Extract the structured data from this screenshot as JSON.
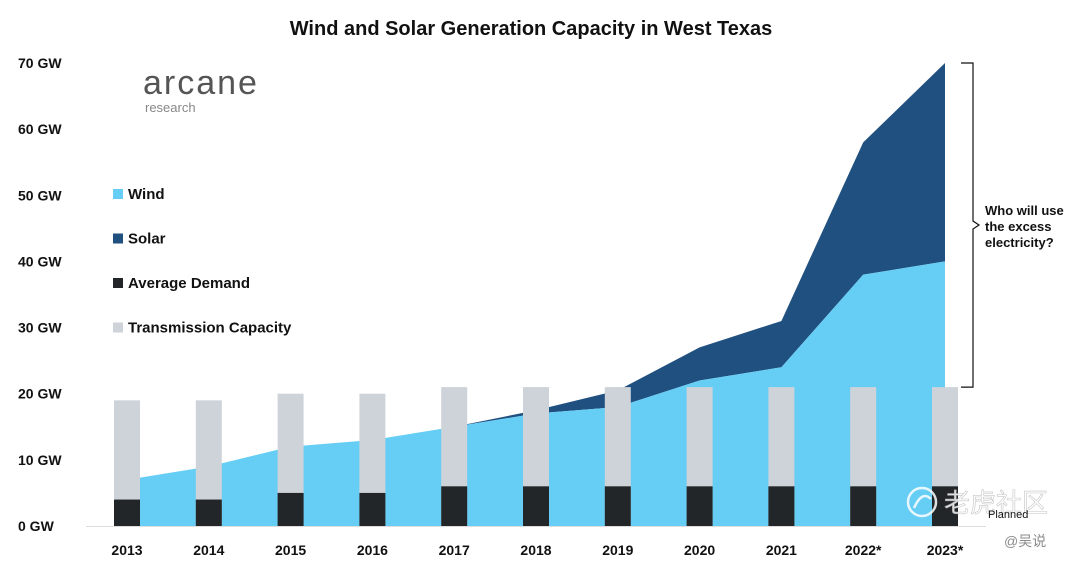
{
  "chart_data": {
    "type": "area",
    "title": "Wind and Solar Generation Capacity in West Texas",
    "categories": [
      "2013",
      "2014",
      "2015",
      "2016",
      "2017",
      "2018",
      "2019",
      "2020",
      "2021",
      "2022*",
      "2023*"
    ],
    "y_ticks": [
      "0 GW",
      "10 GW",
      "20 GW",
      "30 GW",
      "40 GW",
      "50 GW",
      "60 GW",
      "70 GW"
    ],
    "ylim": [
      0,
      70
    ],
    "unit": "GW",
    "grid": false,
    "legend_placement": "left",
    "series": [
      {
        "name": "Wind",
        "kind": "area",
        "color": "#66cdf5",
        "values": [
          7,
          9,
          12,
          13,
          15,
          17,
          18,
          22,
          24,
          38,
          40
        ]
      },
      {
        "name": "Solar",
        "kind": "area-stacked",
        "color": "#1f5080",
        "values": [
          0,
          0,
          0,
          0,
          0,
          0.5,
          2.5,
          5,
          7,
          20,
          30
        ]
      },
      {
        "name": "Average Demand",
        "kind": "bar",
        "color": "#222629",
        "values": [
          4,
          4,
          5,
          5,
          6,
          6,
          6,
          6,
          6,
          6,
          6
        ]
      },
      {
        "name": "Transmission Capacity",
        "kind": "bar",
        "color": "#ced3d9",
        "values": [
          19,
          19,
          20,
          20,
          21,
          21,
          21,
          21,
          21,
          21,
          21
        ]
      }
    ],
    "annotation": {
      "lines": [
        "Who will use",
        "the excess",
        "electricity?"
      ],
      "from": 21,
      "to": 70,
      "category": "2023*"
    }
  },
  "logo": {
    "name": "arcane",
    "sub": "research"
  },
  "watermark": {
    "line1": "老虎社区",
    "line2": "@吴说"
  },
  "footnote": "Planned",
  "colors": {
    "text": "#111111",
    "logo": "#555555",
    "axis": "#dddddd"
  }
}
